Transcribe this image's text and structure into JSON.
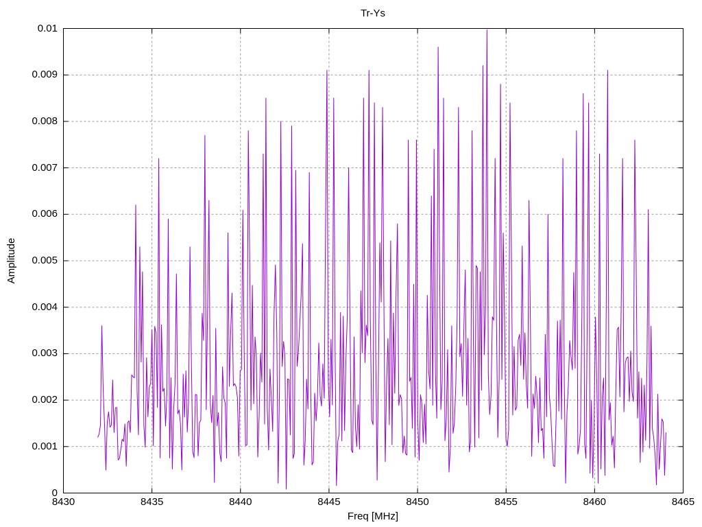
{
  "window": {
    "background_color": "#ffffff",
    "text_color": "#000000"
  },
  "chart_data": {
    "type": "line",
    "title": "Tr-Ys",
    "xlabel": "Freq [MHz]",
    "ylabel": "Amplitude",
    "xlim": [
      8430,
      8465
    ],
    "ylim": [
      0,
      0.01
    ],
    "xticks": [
      {
        "v": 8430,
        "label": "8430"
      },
      {
        "v": 8435,
        "label": "8435"
      },
      {
        "v": 8440,
        "label": "8440"
      },
      {
        "v": 8445,
        "label": "8445"
      },
      {
        "v": 8450,
        "label": "8450"
      },
      {
        "v": 8455,
        "label": "8455"
      },
      {
        "v": 8460,
        "label": "8460"
      },
      {
        "v": 8465,
        "label": "8465"
      }
    ],
    "yticks": [
      {
        "v": 0,
        "label": "0"
      },
      {
        "v": 0.001,
        "label": "0.001"
      },
      {
        "v": 0.002,
        "label": "0.002"
      },
      {
        "v": 0.003,
        "label": "0.003"
      },
      {
        "v": 0.004,
        "label": "0.004"
      },
      {
        "v": 0.005,
        "label": "0.005"
      },
      {
        "v": 0.006,
        "label": "0.006"
      },
      {
        "v": 0.007,
        "label": "0.007"
      },
      {
        "v": 0.008,
        "label": "0.008"
      },
      {
        "v": 0.009,
        "label": "0.009"
      },
      {
        "v": 0.01,
        "label": "0.01"
      }
    ],
    "grid": {
      "show": true,
      "style": "dotted",
      "color": "#999999",
      "dash": "3,3"
    },
    "legend": "none",
    "frame_color": "#000000",
    "tick_length": 7,
    "series": [
      {
        "name": "Tr-Ys",
        "color": "#9400d3",
        "line_width": 1,
        "x_start": 8431.94,
        "x_end": 8464.03,
        "points": 420,
        "noise_model": {
          "distribution": "rayleigh",
          "seed": 11,
          "amp_floor": 8e-05,
          "amp_ceil_random": 0.0093,
          "amp_max": 0.00997
        },
        "sigma_envelope": [
          [
            8431.94,
            0.001
          ],
          [
            8432.6,
            0.0013
          ],
          [
            8433.6,
            0.0011
          ],
          [
            8434.3,
            0.0017
          ],
          [
            8435.5,
            0.0019
          ],
          [
            8436.5,
            0.0016
          ],
          [
            8437.5,
            0.0015
          ],
          [
            8438.2,
            0.0018
          ],
          [
            8439.2,
            0.0016
          ],
          [
            8440.3,
            0.0019
          ],
          [
            8441.5,
            0.0021
          ],
          [
            8442.8,
            0.0021
          ],
          [
            8443.8,
            0.0018
          ],
          [
            8445.0,
            0.0022
          ],
          [
            8446.2,
            0.002
          ],
          [
            8447.4,
            0.0022
          ],
          [
            8448.5,
            0.0019
          ],
          [
            8449.5,
            0.0019
          ],
          [
            8450.6,
            0.002
          ],
          [
            8451.8,
            0.0022
          ],
          [
            8453.0,
            0.0021
          ],
          [
            8454.2,
            0.0024
          ],
          [
            8455.4,
            0.0022
          ],
          [
            8456.5,
            0.0017
          ],
          [
            8457.6,
            0.0016
          ],
          [
            8458.8,
            0.0019
          ],
          [
            8460.0,
            0.0021
          ],
          [
            8461.2,
            0.0021
          ],
          [
            8462.4,
            0.0019
          ],
          [
            8463.2,
            0.0014
          ],
          [
            8463.7,
            0.0009
          ],
          [
            8464.03,
            0.0006
          ]
        ],
        "notable_peaks": [
          [
            8432.15,
            0.0036
          ],
          [
            8434.1,
            0.0062
          ],
          [
            8434.35,
            0.0053
          ],
          [
            8435.4,
            0.0072
          ],
          [
            8435.95,
            0.0059
          ],
          [
            8437.15,
            0.0053
          ],
          [
            8438.0,
            0.0077
          ],
          [
            8438.2,
            0.0063
          ],
          [
            8439.3,
            0.0056
          ],
          [
            8440.45,
            0.0078
          ],
          [
            8441.3,
            0.0073
          ],
          [
            8441.45,
            0.0085
          ],
          [
            8442.3,
            0.008
          ],
          [
            8442.9,
            0.0079
          ],
          [
            8443.9,
            0.0069
          ],
          [
            8444.85,
            0.0091
          ],
          [
            8445.25,
            0.0085
          ],
          [
            8446.1,
            0.007
          ],
          [
            8446.95,
            0.0085
          ],
          [
            8447.25,
            0.0091
          ],
          [
            8447.6,
            0.0084
          ],
          [
            8448.0,
            0.0083
          ],
          [
            8449.5,
            0.0076
          ],
          [
            8449.95,
            0.0076
          ],
          [
            8450.9,
            0.0074
          ],
          [
            8451.2,
            0.0096
          ],
          [
            8451.5,
            0.0085
          ],
          [
            8452.3,
            0.0083
          ],
          [
            8453.1,
            0.0078
          ],
          [
            8453.7,
            0.0092
          ],
          [
            8453.95,
            0.00997
          ],
          [
            8454.35,
            0.0072
          ],
          [
            8454.7,
            0.0088
          ],
          [
            8455.2,
            0.0084
          ],
          [
            8456.3,
            0.0063
          ],
          [
            8457.4,
            0.006
          ],
          [
            8458.2,
            0.0072
          ],
          [
            8459.0,
            0.0078
          ],
          [
            8459.35,
            0.0086
          ],
          [
            8459.7,
            0.0084
          ],
          [
            8460.3,
            0.0073
          ],
          [
            8460.7,
            0.0091
          ],
          [
            8461.6,
            0.0072
          ],
          [
            8462.3,
            0.0076
          ],
          [
            8463.0,
            0.0061
          ]
        ]
      }
    ]
  }
}
